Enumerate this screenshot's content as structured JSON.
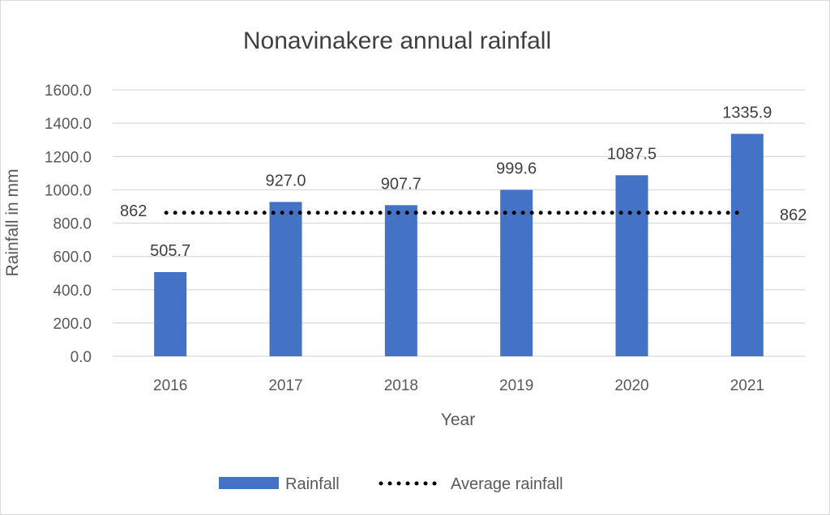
{
  "chart_data": {
    "type": "bar",
    "title": "Nonavinakere annual rainfall",
    "xlabel": "Year",
    "ylabel": "Rainfall in mm",
    "categories": [
      "2016",
      "2017",
      "2018",
      "2019",
      "2020",
      "2021"
    ],
    "series": [
      {
        "name": "Rainfall",
        "type": "bar",
        "color": "#4472c4",
        "values": [
          505.7,
          927.0,
          907.7,
          999.6,
          1087.5,
          1335.9
        ],
        "labels": [
          "505.7",
          "927.0",
          "907.7",
          "999.6",
          "1087.5",
          "1335.9"
        ]
      },
      {
        "name": "Average rainfall",
        "type": "line",
        "style": "dotted",
        "color": "#000000",
        "value": 862,
        "label": "862"
      }
    ],
    "ylim": [
      0,
      1600
    ],
    "yticks": [
      "0.0",
      "200.0",
      "400.0",
      "600.0",
      "800.0",
      "1000.0",
      "1200.0",
      "1400.0",
      "1600.0"
    ],
    "grid": true,
    "legend": "bottom"
  }
}
